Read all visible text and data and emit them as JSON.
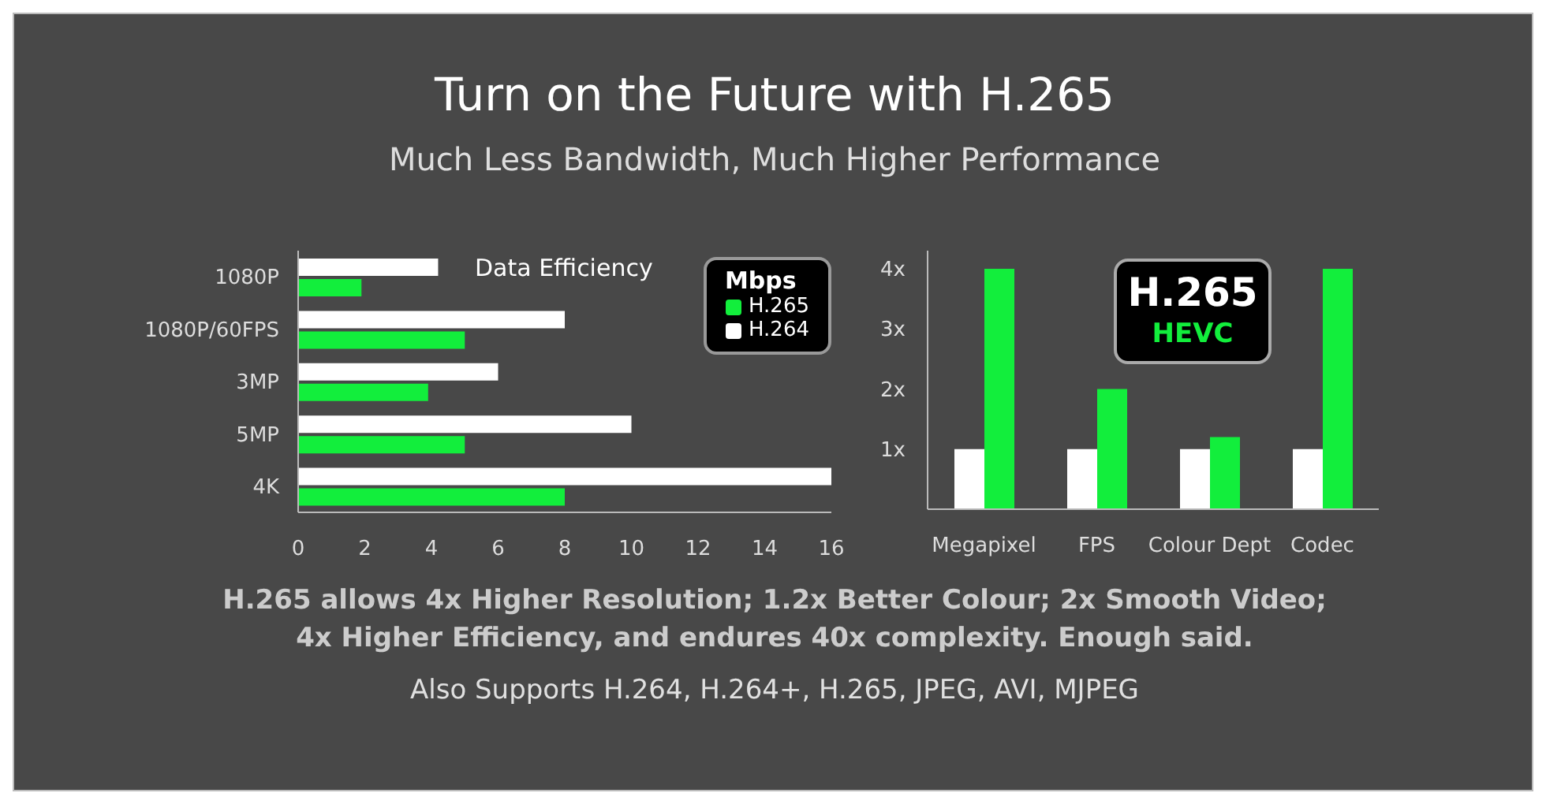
{
  "chart_data": [
    {
      "type": "other",
      "title": "Turn on the Future with H.265",
      "subtitle": "Much Less Bandwidth, Much Higher Performance",
      "annotations": [
        "H.265 allows 4x Higher Resolution; 1.2x Better Colour; 2x Smooth Video;",
        "4x Higher Efficiency, and endures 40x complexity. Enough said.",
        "Also Supports H.264, H.264+, H.265, JPEG, AVI, MJPEG"
      ]
    },
    {
      "type": "bar",
      "orientation": "horizontal",
      "title": "Data Efficiency",
      "legend_title": "Mbps",
      "legend": "top right",
      "categories": [
        "1080P",
        "1080P/60FPS",
        "3MP",
        "5MP",
        "4K"
      ],
      "series": [
        {
          "name": "H.264",
          "color": "#ffffff",
          "values": [
            4.2,
            8,
            6,
            10,
            16
          ]
        },
        {
          "name": "H.265",
          "color": "#12ee3c",
          "values": [
            1.9,
            5,
            3.9,
            5,
            8
          ]
        }
      ],
      "xlim": [
        0,
        16
      ],
      "xticks": [
        0,
        2,
        4,
        6,
        8,
        10,
        12,
        14,
        16
      ]
    },
    {
      "type": "bar",
      "categories": [
        "Megapixel",
        "FPS",
        "Colour Dept",
        "Codec"
      ],
      "series": [
        {
          "color": "#ffffff",
          "values": [
            1,
            1,
            1,
            1
          ]
        },
        {
          "color": "#12ee3c",
          "values": [
            4,
            2,
            1.2,
            4
          ]
        }
      ],
      "ylim": [
        0,
        4.3
      ],
      "yticks": [
        {
          "value": 1,
          "label": "1x"
        },
        {
          "value": 2,
          "label": "2x"
        },
        {
          "value": 3,
          "label": "3x"
        },
        {
          "value": 4,
          "label": "4x"
        }
      ],
      "annotations": [
        "H.265",
        "HEVC"
      ]
    }
  ]
}
